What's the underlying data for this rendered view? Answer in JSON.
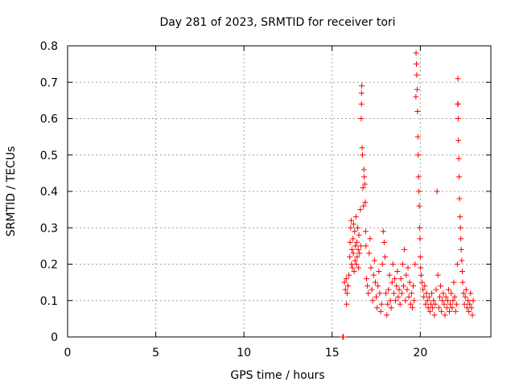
{
  "chart_data": {
    "type": "scatter",
    "title": "Day 281 of 2023, SRMTID for receiver tori",
    "xlabel": "GPS time / hours",
    "ylabel": "SRMTID / TECUs",
    "xlim": [
      0,
      24
    ],
    "ylim": [
      0,
      0.8
    ],
    "xticks": [
      0,
      5,
      10,
      15,
      20
    ],
    "xtick_labels": [
      "0",
      "5",
      "10",
      "15",
      "20"
    ],
    "yticks": [
      0,
      0.1,
      0.2,
      0.3,
      0.4,
      0.5,
      0.6,
      0.7,
      0.8
    ],
    "ytick_labels": [
      "0",
      "0.1",
      "0.2",
      "0.3",
      "0.4",
      "0.5",
      "0.6",
      "0.7",
      "0.8"
    ],
    "grid": true,
    "marker": "+",
    "marker_color": "#ff0000",
    "series": [
      {
        "name": "SRMTID",
        "points": [
          [
            15.6,
            0.0
          ],
          [
            15.62,
            0.0
          ],
          [
            15.64,
            0.0
          ],
          [
            15.7,
            0.15
          ],
          [
            15.75,
            0.13
          ],
          [
            15.8,
            0.16
          ],
          [
            15.82,
            0.09
          ],
          [
            15.85,
            0.12
          ],
          [
            15.9,
            0.14
          ],
          [
            15.95,
            0.17
          ],
          [
            16.0,
            0.22
          ],
          [
            16.02,
            0.26
          ],
          [
            16.05,
            0.3
          ],
          [
            16.08,
            0.32
          ],
          [
            16.1,
            0.2
          ],
          [
            16.12,
            0.24
          ],
          [
            16.15,
            0.19
          ],
          [
            16.18,
            0.27
          ],
          [
            16.2,
            0.23
          ],
          [
            16.22,
            0.31
          ],
          [
            16.25,
            0.18
          ],
          [
            16.28,
            0.29
          ],
          [
            16.3,
            0.21
          ],
          [
            16.32,
            0.25
          ],
          [
            16.35,
            0.33
          ],
          [
            16.38,
            0.2
          ],
          [
            16.4,
            0.26
          ],
          [
            16.42,
            0.22
          ],
          [
            16.45,
            0.3
          ],
          [
            16.48,
            0.24
          ],
          [
            16.5,
            0.19
          ],
          [
            16.52,
            0.28
          ],
          [
            16.55,
            0.23
          ],
          [
            16.6,
            0.35
          ],
          [
            16.62,
            0.25
          ],
          [
            16.65,
            0.6
          ],
          [
            16.66,
            0.64
          ],
          [
            16.67,
            0.67
          ],
          [
            16.68,
            0.69
          ],
          [
            16.7,
            0.52
          ],
          [
            16.72,
            0.5
          ],
          [
            16.75,
            0.41
          ],
          [
            16.78,
            0.36
          ],
          [
            16.8,
            0.46
          ],
          [
            16.82,
            0.44
          ],
          [
            16.85,
            0.42
          ],
          [
            16.88,
            0.37
          ],
          [
            16.9,
            0.29
          ],
          [
            16.92,
            0.25
          ],
          [
            16.95,
            0.16
          ],
          [
            17.0,
            0.14
          ],
          [
            17.05,
            0.12
          ],
          [
            17.1,
            0.23
          ],
          [
            17.15,
            0.27
          ],
          [
            17.2,
            0.19
          ],
          [
            17.25,
            0.13
          ],
          [
            17.3,
            0.1
          ],
          [
            17.35,
            0.17
          ],
          [
            17.4,
            0.21
          ],
          [
            17.45,
            0.15
          ],
          [
            17.5,
            0.11
          ],
          [
            17.55,
            0.08
          ],
          [
            17.6,
            0.14
          ],
          [
            17.65,
            0.18
          ],
          [
            17.7,
            0.12
          ],
          [
            17.75,
            0.07
          ],
          [
            17.8,
            0.09
          ],
          [
            17.85,
            0.2
          ],
          [
            17.9,
            0.29
          ],
          [
            17.95,
            0.26
          ],
          [
            18.0,
            0.22
          ],
          [
            18.05,
            0.12
          ],
          [
            18.1,
            0.06
          ],
          [
            18.15,
            0.09
          ],
          [
            18.2,
            0.13
          ],
          [
            18.25,
            0.17
          ],
          [
            18.3,
            0.1
          ],
          [
            18.35,
            0.08
          ],
          [
            18.4,
            0.15
          ],
          [
            18.45,
            0.2
          ],
          [
            18.5,
            0.12
          ],
          [
            18.55,
            0.16
          ],
          [
            18.6,
            0.1
          ],
          [
            18.65,
            0.14
          ],
          [
            18.7,
            0.18
          ],
          [
            18.75,
            0.11
          ],
          [
            18.8,
            0.13
          ],
          [
            18.85,
            0.09
          ],
          [
            18.9,
            0.16
          ],
          [
            18.95,
            0.12
          ],
          [
            19.0,
            0.2
          ],
          [
            19.05,
            0.14
          ],
          [
            19.1,
            0.24
          ],
          [
            19.15,
            0.1
          ],
          [
            19.2,
            0.17
          ],
          [
            19.25,
            0.13
          ],
          [
            19.3,
            0.19
          ],
          [
            19.35,
            0.11
          ],
          [
            19.4,
            0.15
          ],
          [
            19.45,
            0.09
          ],
          [
            19.5,
            0.12
          ],
          [
            19.55,
            0.08
          ],
          [
            19.6,
            0.14
          ],
          [
            19.65,
            0.1
          ],
          [
            19.7,
            0.2
          ],
          [
            19.75,
            0.66
          ],
          [
            19.76,
            0.78
          ],
          [
            19.78,
            0.75
          ],
          [
            19.8,
            0.72
          ],
          [
            19.82,
            0.68
          ],
          [
            19.84,
            0.62
          ],
          [
            19.86,
            0.55
          ],
          [
            19.88,
            0.5
          ],
          [
            19.9,
            0.44
          ],
          [
            19.92,
            0.4
          ],
          [
            19.94,
            0.36
          ],
          [
            19.96,
            0.3
          ],
          [
            19.98,
            0.27
          ],
          [
            20.0,
            0.22
          ],
          [
            20.02,
            0.19
          ],
          [
            20.05,
            0.17
          ],
          [
            20.1,
            0.15
          ],
          [
            20.15,
            0.13
          ],
          [
            20.2,
            0.11
          ],
          [
            20.25,
            0.14
          ],
          [
            20.3,
            0.09
          ],
          [
            20.35,
            0.12
          ],
          [
            20.4,
            0.1
          ],
          [
            20.45,
            0.08
          ],
          [
            20.5,
            0.11
          ],
          [
            20.55,
            0.07
          ],
          [
            20.6,
            0.09
          ],
          [
            20.65,
            0.12
          ],
          [
            20.7,
            0.08
          ],
          [
            20.75,
            0.1
          ],
          [
            20.8,
            0.06
          ],
          [
            20.85,
            0.09
          ],
          [
            20.9,
            0.13
          ],
          [
            20.95,
            0.4
          ],
          [
            21.0,
            0.17
          ],
          [
            21.05,
            0.08
          ],
          [
            21.1,
            0.11
          ],
          [
            21.15,
            0.14
          ],
          [
            21.2,
            0.07
          ],
          [
            21.25,
            0.1
          ],
          [
            21.3,
            0.12
          ],
          [
            21.35,
            0.09
          ],
          [
            21.4,
            0.06
          ],
          [
            21.45,
            0.11
          ],
          [
            21.5,
            0.08
          ],
          [
            21.55,
            0.1
          ],
          [
            21.6,
            0.13
          ],
          [
            21.65,
            0.07
          ],
          [
            21.7,
            0.09
          ],
          [
            21.75,
            0.12
          ],
          [
            21.8,
            0.08
          ],
          [
            21.85,
            0.1
          ],
          [
            21.9,
            0.15
          ],
          [
            21.95,
            0.11
          ],
          [
            22.0,
            0.07
          ],
          [
            22.05,
            0.09
          ],
          [
            22.1,
            0.2
          ],
          [
            22.12,
            0.64
          ],
          [
            22.13,
            0.71
          ],
          [
            22.14,
            0.64
          ],
          [
            22.15,
            0.6
          ],
          [
            22.16,
            0.54
          ],
          [
            22.18,
            0.49
          ],
          [
            22.2,
            0.44
          ],
          [
            22.22,
            0.38
          ],
          [
            22.25,
            0.33
          ],
          [
            22.28,
            0.3
          ],
          [
            22.3,
            0.27
          ],
          [
            22.32,
            0.24
          ],
          [
            22.35,
            0.21
          ],
          [
            22.38,
            0.18
          ],
          [
            22.4,
            0.15
          ],
          [
            22.45,
            0.12
          ],
          [
            22.5,
            0.09
          ],
          [
            22.55,
            0.11
          ],
          [
            22.6,
            0.13
          ],
          [
            22.65,
            0.08
          ],
          [
            22.7,
            0.1
          ],
          [
            22.75,
            0.07
          ],
          [
            22.8,
            0.09
          ],
          [
            22.85,
            0.12
          ],
          [
            22.9,
            0.08
          ],
          [
            22.95,
            0.06
          ],
          [
            23.0,
            0.1
          ]
        ]
      }
    ]
  }
}
